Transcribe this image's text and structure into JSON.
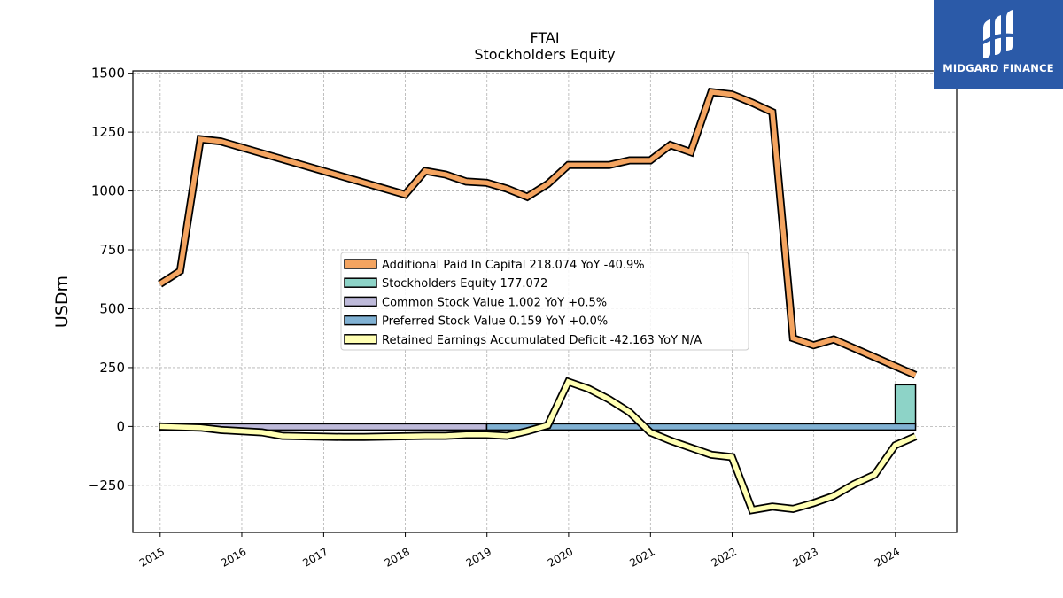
{
  "chart_data": {
    "type": "line",
    "title": "FTAI",
    "subtitle": "Stockholders  Equity",
    "ylabel": "USDm",
    "xlabel": "",
    "ylim": [
      -450,
      1510
    ],
    "yticks": [
      1500,
      1250,
      1000,
      750,
      500,
      250,
      0,
      -250
    ],
    "ytick_labels": [
      "1500",
      "1250",
      "1000",
      "750",
      "500",
      "250",
      "0",
      "−250"
    ],
    "xtick_labels": [
      "2015",
      "2016",
      "2017",
      "2018",
      "2019",
      "2020",
      "2021",
      "2022",
      "2023",
      "2024"
    ],
    "xtick_dates": [
      "2015-01-01",
      "2016-01-01",
      "2017-01-01",
      "2018-01-01",
      "2019-01-01",
      "2020-01-01",
      "2021-01-01",
      "2022-01-01",
      "2023-01-01",
      "2024-01-01"
    ],
    "grid": true,
    "legend_position": "center",
    "series": [
      {
        "name": "Additional Paid In Capital",
        "legend_label": "Additional Paid In Capital  218.074 YoY -40.9%",
        "color": "#f4a460",
        "kind": "line",
        "x": [
          "2014-12-31",
          "2015-03-31",
          "2015-06-30",
          "2015-09-30",
          "2017-12-31",
          "2018-03-31",
          "2018-06-30",
          "2018-09-30",
          "2018-12-31",
          "2019-03-31",
          "2019-06-30",
          "2019-09-30",
          "2019-12-31",
          "2020-03-31",
          "2020-06-30",
          "2020-09-30",
          "2020-12-31",
          "2021-03-31",
          "2021-06-30",
          "2021-09-30",
          "2021-12-31",
          "2022-03-31",
          "2022-06-30",
          "2022-09-30",
          "2022-12-31",
          "2023-03-31",
          "2024-03-31"
        ],
        "values": [
          605,
          660,
          1220,
          1210,
          985,
          1085,
          1070,
          1040,
          1035,
          1010,
          975,
          1030,
          1110,
          1110,
          1110,
          1130,
          1130,
          1195,
          1165,
          1420,
          1410,
          1375,
          1335,
          375,
          345,
          370,
          218.074
        ]
      },
      {
        "name": "Stockholders Equity",
        "legend_label": "Stockholders Equity  177.072",
        "color": "#8dd3c7",
        "kind": "bar",
        "x_start": "2023-12-31",
        "x_end": "2024-03-31",
        "value": 177.072
      },
      {
        "name": "Common Stock Value",
        "legend_label": "Common Stock Value  1.002 YoY +0.5%",
        "color": "#bebada",
        "kind": "bar",
        "x_start": "2014-12-31",
        "x_end": "2018-12-31",
        "value": 1.002
      },
      {
        "name": "Preferred Stock Value",
        "legend_label": "Preferred Stock Value  0.159 YoY +0.0%",
        "color": "#80b1d3",
        "kind": "bar",
        "x_start": "2018-12-31",
        "x_end": "2024-03-31",
        "value": 0.159
      },
      {
        "name": "Retained Earnings Accumulated Deficit",
        "legend_label": "Retained Earnings Accumulated Deficit  -42.163 YoY N/A",
        "color": "#ffffb3",
        "kind": "line",
        "x": [
          "2014-12-31",
          "2015-06-30",
          "2015-09-30",
          "2016-03-31",
          "2016-06-30",
          "2017-03-31",
          "2017-06-30",
          "2018-03-31",
          "2018-06-30",
          "2018-09-30",
          "2018-12-31",
          "2019-03-31",
          "2019-06-30",
          "2019-09-30",
          "2019-12-31",
          "2020-03-31",
          "2020-06-30",
          "2020-09-30",
          "2020-12-31",
          "2021-03-31",
          "2021-06-30",
          "2021-09-30",
          "2021-12-31",
          "2022-03-31",
          "2022-06-30",
          "2022-09-30",
          "2022-12-31",
          "2023-03-31",
          "2023-06-30",
          "2023-09-30",
          "2023-12-31",
          "2024-03-31"
        ],
        "values": [
          0,
          -5,
          -15,
          -25,
          -40,
          -45,
          -45,
          -40,
          -40,
          -35,
          -35,
          -40,
          -20,
          5,
          190,
          160,
          115,
          60,
          -25,
          -60,
          -90,
          -120,
          -130,
          -355,
          -340,
          -350,
          -325,
          -295,
          -245,
          -205,
          -80,
          -42.163
        ]
      }
    ]
  },
  "logo": {
    "text": "MIDGARD FINANCE",
    "background": "#2b5aa8",
    "foreground": "#ffffff"
  }
}
